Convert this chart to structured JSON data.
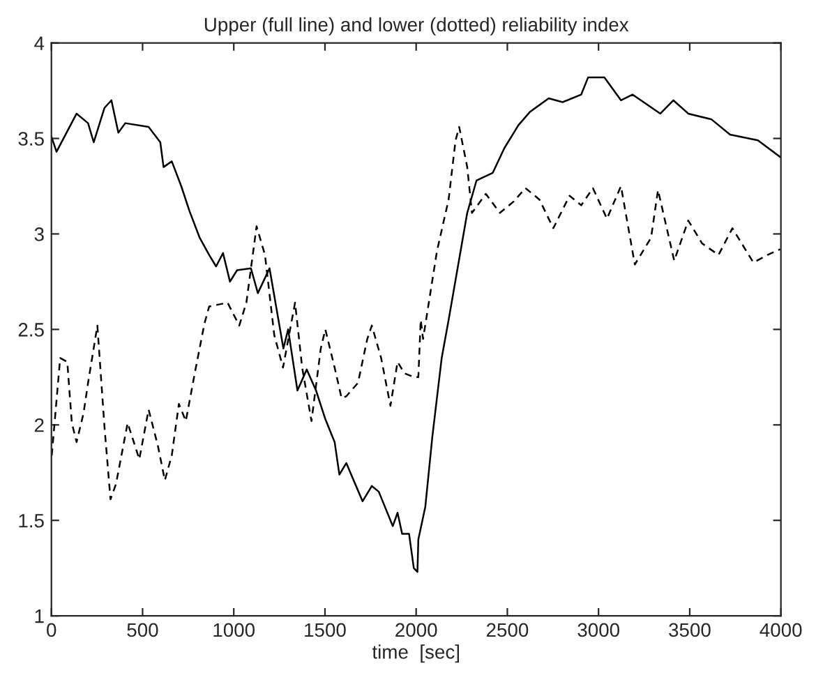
{
  "chart_data": {
    "type": "line",
    "title": "Upper (full line) and lower (dotted) reliability index",
    "xlabel": "time  [sec]",
    "xlim": [
      0,
      4000
    ],
    "ylim": [
      1,
      4
    ],
    "xticks": [
      0,
      500,
      1000,
      1500,
      2000,
      2500,
      3000,
      3500,
      4000
    ],
    "yticks": [
      1,
      1.5,
      2,
      2.5,
      3,
      3.5,
      4
    ],
    "grid": false,
    "legend": false,
    "series": [
      {
        "color": "#000000",
        "line_style": "solid",
        "x": [
          0,
          28,
          138,
          201,
          232,
          291,
          329,
          367,
          405,
          533,
          597,
          615,
          660,
          712,
          757,
          813,
          865,
          903,
          941,
          979,
          1018,
          1094,
          1132,
          1196,
          1272,
          1298,
          1349,
          1400,
          1451,
          1502,
          1553,
          1579,
          1617,
          1706,
          1757,
          1795,
          1872,
          1898,
          1923,
          1961,
          1987,
          2007,
          2012,
          2050,
          2089,
          2140,
          2178,
          2280,
          2331,
          2420,
          2484,
          2561,
          2625,
          2727,
          2803,
          2905,
          2943,
          3032,
          3123,
          3186,
          3339,
          3410,
          3492,
          3619,
          3721,
          3874,
          4000
        ],
        "values": [
          3.51,
          3.43,
          3.63,
          3.58,
          3.48,
          3.66,
          3.7,
          3.53,
          3.58,
          3.56,
          3.48,
          3.35,
          3.38,
          3.25,
          3.12,
          2.98,
          2.89,
          2.83,
          2.9,
          2.75,
          2.81,
          2.82,
          2.69,
          2.82,
          2.4,
          2.5,
          2.18,
          2.29,
          2.18,
          2.03,
          1.91,
          1.74,
          1.8,
          1.6,
          1.68,
          1.65,
          1.47,
          1.54,
          1.43,
          1.43,
          1.25,
          1.23,
          1.4,
          1.57,
          1.94,
          2.35,
          2.55,
          3.11,
          3.28,
          3.32,
          3.45,
          3.57,
          3.64,
          3.71,
          3.69,
          3.73,
          3.82,
          3.82,
          3.7,
          3.73,
          3.63,
          3.7,
          3.63,
          3.6,
          3.52,
          3.49,
          3.4
        ]
      },
      {
        "color": "#000000",
        "line_style": "dashed",
        "x": [
          2,
          48,
          87,
          112,
          138,
          176,
          201,
          252,
          291,
          324,
          354,
          418,
          482,
          533,
          584,
          622,
          660,
          699,
          737,
          788,
          839,
          865,
          966,
          1030,
          1069,
          1125,
          1171,
          1222,
          1270,
          1336,
          1375,
          1426,
          1477,
          1502,
          1553,
          1591,
          1617,
          1681,
          1732,
          1757,
          1808,
          1859,
          1898,
          1936,
          1987,
          2012,
          2025,
          2038,
          2114,
          2178,
          2216,
          2236,
          2280,
          2306,
          2382,
          2459,
          2535,
          2599,
          2676,
          2752,
          2841,
          2905,
          2969,
          3046,
          3123,
          3199,
          3288,
          3326,
          3415,
          3492,
          3568,
          3658,
          3734,
          3849,
          3926,
          3996
        ],
        "values": [
          1.84,
          2.35,
          2.33,
          2.01,
          1.91,
          2.06,
          2.22,
          2.52,
          1.99,
          1.61,
          1.69,
          2.01,
          1.82,
          2.08,
          1.89,
          1.71,
          1.84,
          2.11,
          2.02,
          2.28,
          2.53,
          2.62,
          2.64,
          2.52,
          2.64,
          3.04,
          2.89,
          2.47,
          2.3,
          2.64,
          2.3,
          2.02,
          2.4,
          2.5,
          2.3,
          2.14,
          2.15,
          2.22,
          2.45,
          2.52,
          2.35,
          2.1,
          2.33,
          2.27,
          2.25,
          2.25,
          2.55,
          2.45,
          2.91,
          3.18,
          3.49,
          3.56,
          3.35,
          3.11,
          3.21,
          3.11,
          3.17,
          3.24,
          3.18,
          3.03,
          3.2,
          3.15,
          3.24,
          3.08,
          3.25,
          2.84,
          2.98,
          3.23,
          2.86,
          3.07,
          2.95,
          2.89,
          3.03,
          2.85,
          2.89,
          2.92
        ]
      }
    ]
  }
}
